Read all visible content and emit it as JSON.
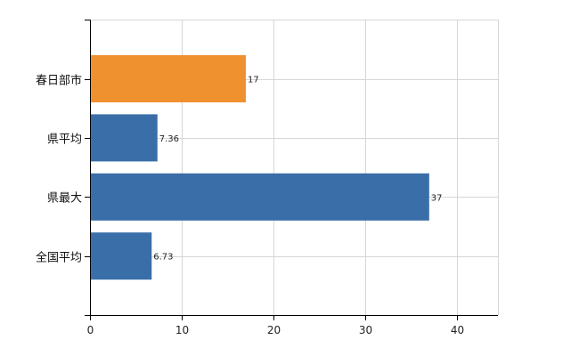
{
  "colors": {
    "highlight": "#f0912f",
    "default": "#3a6ea8",
    "grid": "#d6d6d6",
    "axis": "#000000"
  },
  "chart_data": {
    "type": "bar",
    "orientation": "horizontal",
    "categories": [
      "春日部市",
      "県平均",
      "県最大",
      "全国平均"
    ],
    "values": [
      17,
      7.36,
      37,
      6.73
    ],
    "value_labels": [
      "17",
      "7.36",
      "37",
      "6.73"
    ],
    "highlight_index": 0,
    "xlim": [
      0,
      44.5
    ],
    "xticks": [
      0,
      10,
      20,
      30,
      40
    ],
    "grid": true,
    "legend": "none",
    "title": "",
    "xlabel": "",
    "ylabel": ""
  }
}
